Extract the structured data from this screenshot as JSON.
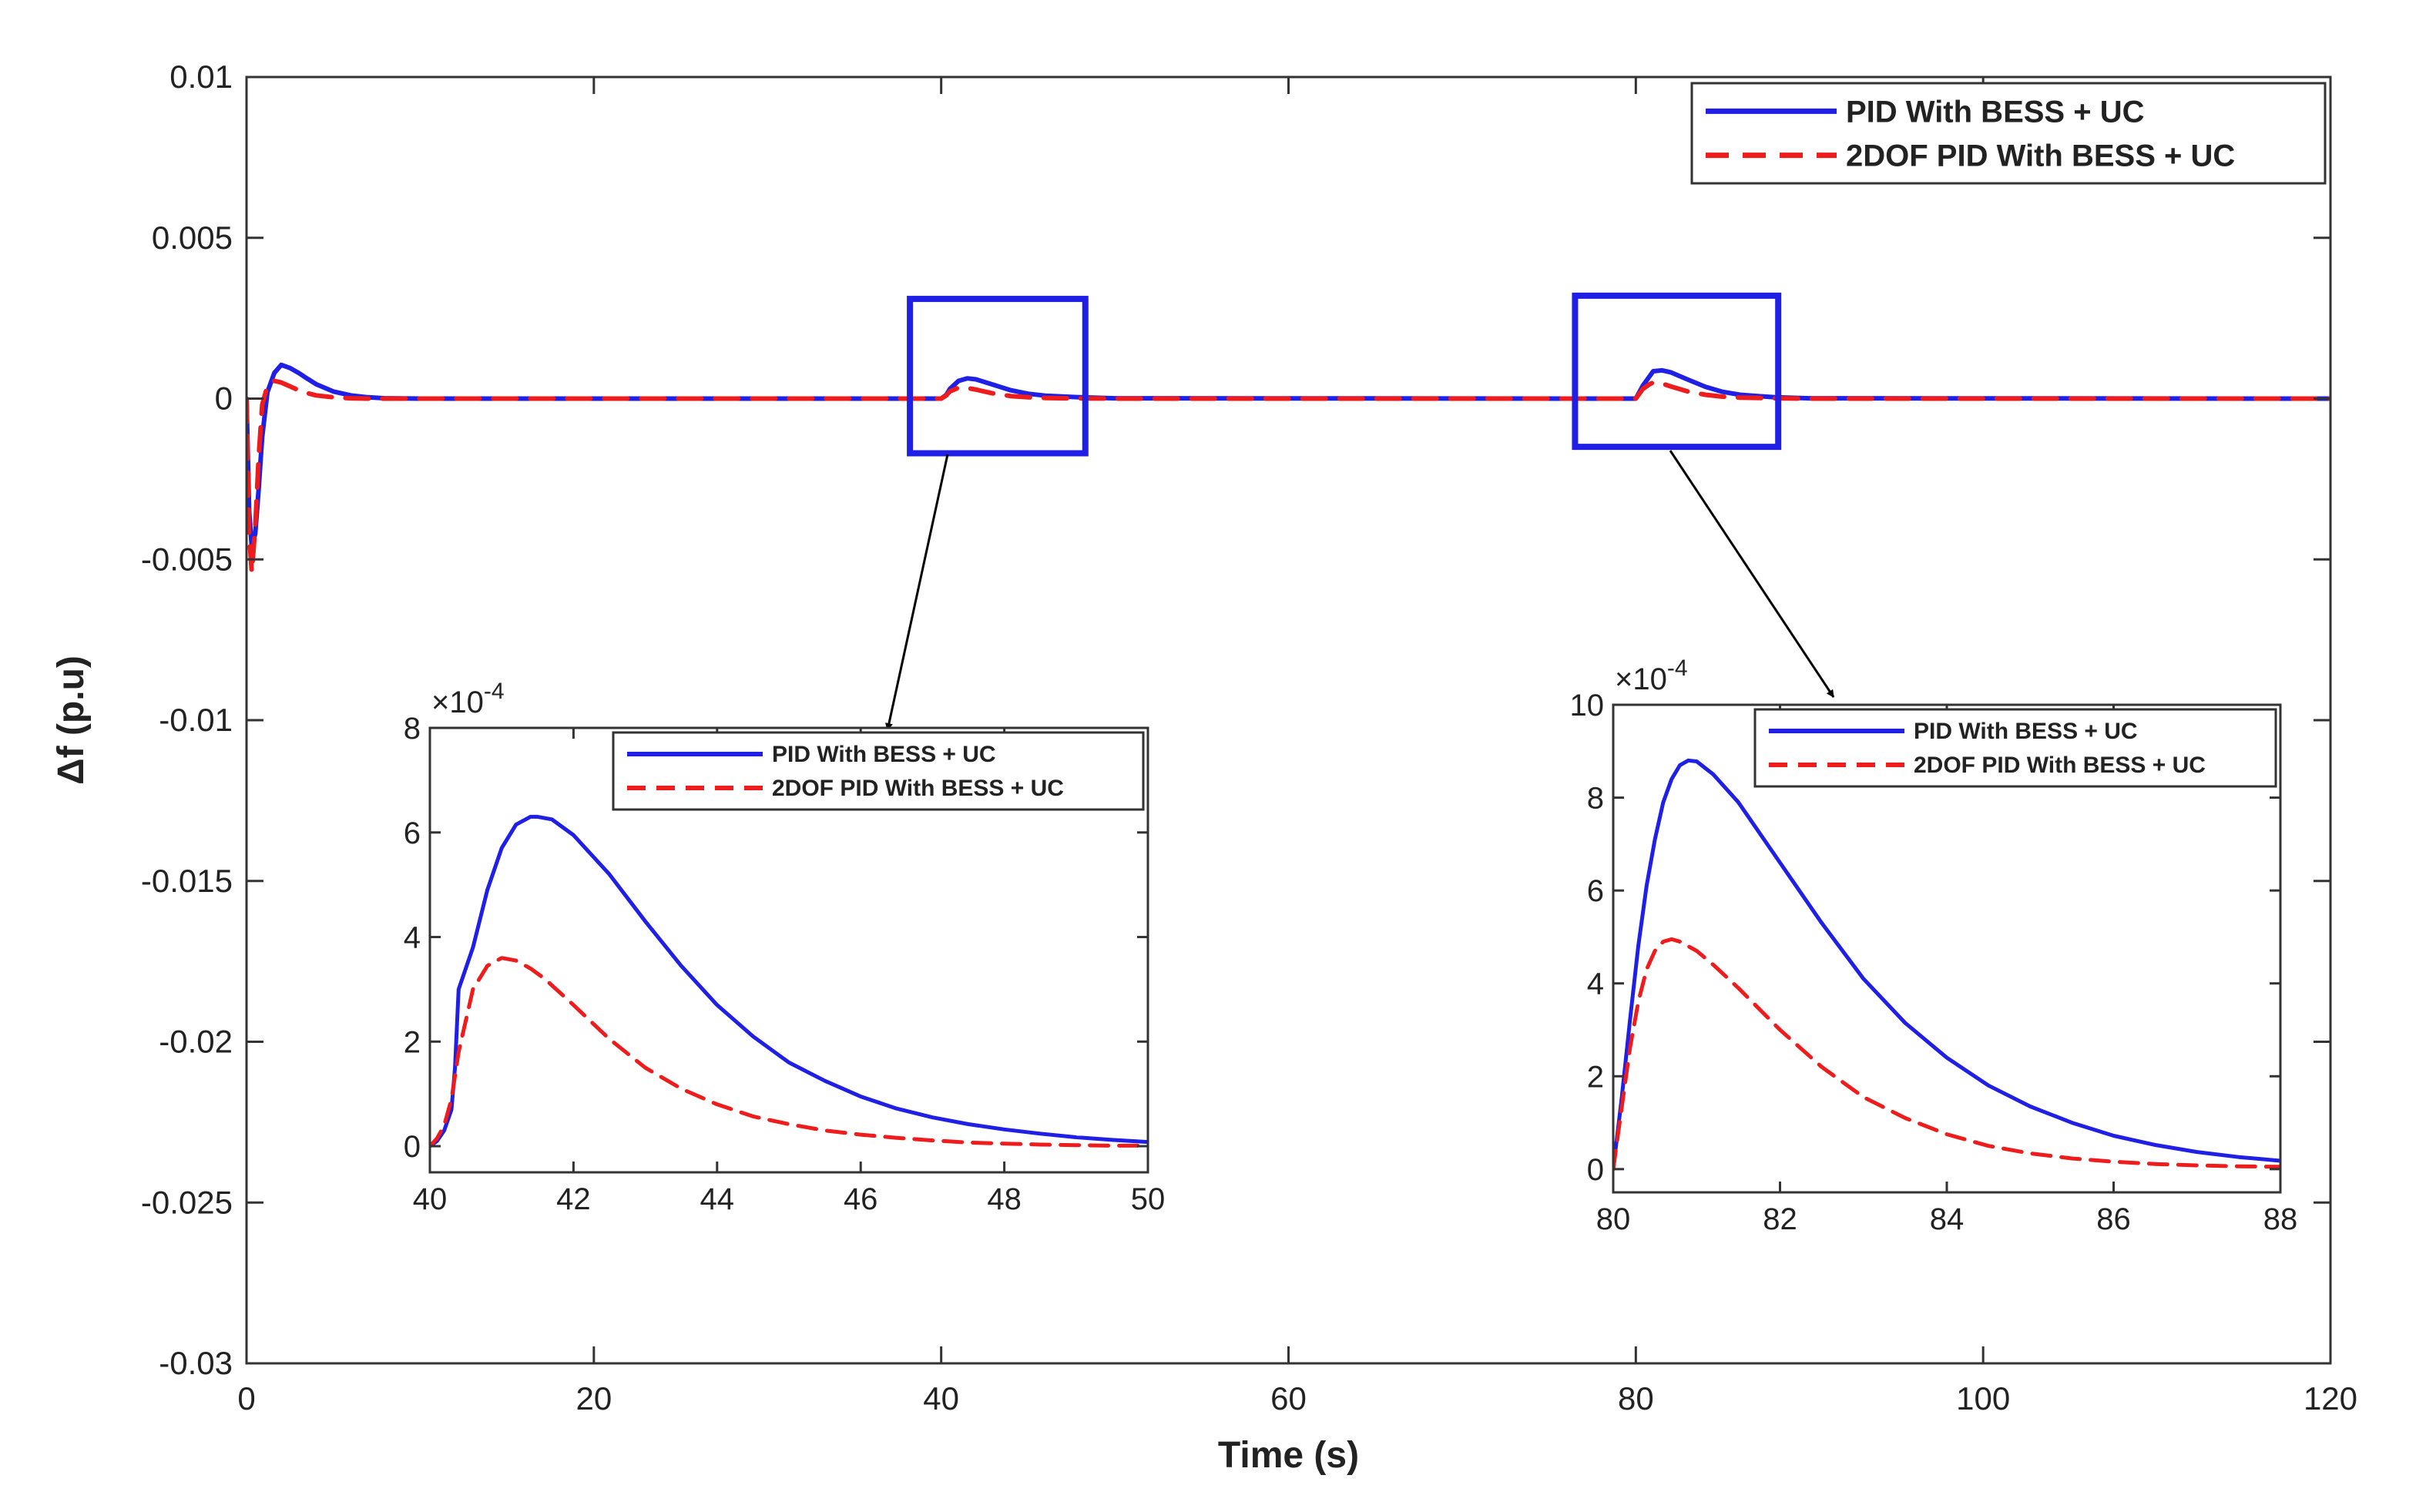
{
  "chart_data": [
    {
      "id": "main",
      "type": "line",
      "title": "",
      "xlabel": "Time (s)",
      "ylabel": "Δf (p.u)",
      "xlim": [
        0,
        120
      ],
      "ylim": [
        -0.03,
        0.01
      ],
      "xticks": [
        0,
        20,
        40,
        60,
        80,
        100,
        120
      ],
      "xtick_labels": [
        "0",
        "20",
        "40",
        "60",
        "80",
        "100",
        "120"
      ],
      "yticks": [
        0.01,
        0.005,
        0,
        -0.005,
        -0.01,
        -0.015,
        -0.02,
        -0.025,
        -0.03
      ],
      "ytick_labels": [
        "0.01",
        "0.005",
        "0",
        "-0.005",
        "-0.01",
        "-0.015",
        "-0.02",
        "-0.025",
        "-0.03"
      ],
      "grid": false,
      "legend_position": "top-right",
      "series": [
        {
          "name": "PID With BESS + UC",
          "color": "#1f1fe6",
          "style": "solid",
          "x": [
            0,
            0.15,
            0.3,
            0.5,
            0.7,
            0.9,
            1.2,
            1.6,
            2.0,
            2.5,
            3,
            3.5,
            4,
            5,
            6,
            7,
            8,
            10,
            12,
            40,
            40.3,
            40.5,
            41,
            41.5,
            42,
            43,
            44,
            45,
            46,
            48,
            50,
            80,
            80.4,
            80.8,
            81,
            81.5,
            82,
            83,
            84,
            85,
            86,
            88,
            90,
            120
          ],
          "y": [
            0,
            -0.0035,
            -0.0046,
            -0.0042,
            -0.0028,
            -0.0012,
            0.0002,
            0.0008,
            0.00105,
            0.00095,
            0.0008,
            0.00062,
            0.00045,
            0.00022,
            0.0001,
            4e-05,
            1e-05,
            0,
            0,
            0,
            0.00012,
            0.0003,
            0.00055,
            0.00063,
            0.0006,
            0.00043,
            0.00026,
            0.00015,
            9e-05,
            4e-05,
            1e-05,
            0,
            0.0004,
            0.0007,
            0.00085,
            0.00088,
            0.00082,
            0.00059,
            0.00037,
            0.00021,
            0.00012,
            4e-05,
            1e-05,
            0
          ]
        },
        {
          "name": "2DOF PID With BESS + UC",
          "color": "#ee1c1c",
          "style": "dashed",
          "x": [
            0,
            0.15,
            0.3,
            0.5,
            0.7,
            0.9,
            1.2,
            1.6,
            2.0,
            2.5,
            3,
            3.5,
            4,
            5,
            6,
            7,
            8,
            10,
            12,
            40,
            40.3,
            40.5,
            41,
            41.5,
            42,
            43,
            44,
            45,
            46,
            48,
            50,
            80,
            80.4,
            80.8,
            81,
            81.5,
            82,
            83,
            84,
            85,
            86,
            88,
            90,
            120
          ],
          "y": [
            0,
            -0.0042,
            -0.0054,
            -0.004,
            -0.0018,
            -0.0002,
            0.0004,
            0.00055,
            0.0005,
            0.00038,
            0.00026,
            0.00017,
            0.0001,
            4e-05,
            1e-05,
            0,
            0,
            0,
            0,
            0,
            0.0001,
            0.00022,
            0.00034,
            0.00033,
            0.00028,
            0.00016,
            8e-05,
            4e-05,
            2e-05,
            5e-06,
            0,
            0,
            0.0003,
            0.00045,
            0.0005,
            0.00047,
            0.00038,
            0.00022,
            0.00012,
            6e-05,
            3e-05,
            1e-05,
            0,
            0
          ]
        }
      ],
      "annotations": [
        "zoom box around t≈40–49 s",
        "zoom box around t≈77–88 s"
      ]
    },
    {
      "id": "inset1",
      "type": "line",
      "title": "",
      "xlabel": "",
      "ylabel": "",
      "multiplier": "×10",
      "exponent": "-4",
      "xlim": [
        40,
        50
      ],
      "ylim": [
        -0.5,
        8
      ],
      "xticks": [
        40,
        42,
        44,
        46,
        48,
        50
      ],
      "xtick_labels": [
        "40",
        "42",
        "44",
        "46",
        "48",
        "50"
      ],
      "yticks": [
        0,
        2,
        4,
        6,
        8
      ],
      "ytick_labels": [
        "0",
        "2",
        "4",
        "6",
        "8"
      ],
      "grid": false,
      "legend_position": "top-right",
      "series": [
        {
          "name": "PID With BESS + UC",
          "color": "#1f1fe6",
          "style": "solid",
          "x": [
            40,
            40.1,
            40.2,
            40.3,
            40.35,
            40.4,
            40.6,
            40.8,
            41.0,
            41.2,
            41.4,
            41.5,
            41.7,
            42.0,
            42.5,
            43.0,
            43.5,
            44.0,
            44.5,
            45.0,
            45.5,
            46.0,
            46.5,
            47.0,
            47.5,
            48.0,
            48.5,
            49.0,
            49.5,
            50.0
          ],
          "y": [
            0,
            0.1,
            0.3,
            0.7,
            1.5,
            3.0,
            3.8,
            4.9,
            5.7,
            6.15,
            6.3,
            6.3,
            6.25,
            5.95,
            5.2,
            4.3,
            3.45,
            2.7,
            2.1,
            1.6,
            1.25,
            0.95,
            0.72,
            0.55,
            0.42,
            0.32,
            0.24,
            0.17,
            0.12,
            0.08
          ]
        },
        {
          "name": "2DOF PID With BESS + UC",
          "color": "#ee1c1c",
          "style": "dashed",
          "x": [
            40,
            40.1,
            40.2,
            40.3,
            40.4,
            40.6,
            40.8,
            41.0,
            41.2,
            41.4,
            41.6,
            42.0,
            42.5,
            43.0,
            43.5,
            44.0,
            44.5,
            45.0,
            45.5,
            46.0,
            46.5,
            47.0,
            47.5,
            48.0,
            48.5,
            49.0,
            49.5,
            50.0
          ],
          "y": [
            0,
            0.15,
            0.4,
            0.9,
            1.8,
            3.0,
            3.45,
            3.6,
            3.55,
            3.4,
            3.2,
            2.7,
            2.05,
            1.5,
            1.1,
            0.8,
            0.57,
            0.42,
            0.3,
            0.22,
            0.16,
            0.11,
            0.07,
            0.05,
            0.03,
            0.02,
            0.01,
            0.01
          ]
        }
      ]
    },
    {
      "id": "inset2",
      "type": "line",
      "title": "",
      "xlabel": "",
      "ylabel": "",
      "multiplier": "×10",
      "exponent": "-4",
      "xlim": [
        80,
        88
      ],
      "ylim": [
        -0.5,
        10
      ],
      "xticks": [
        80,
        82,
        84,
        86,
        88
      ],
      "xtick_labels": [
        "80",
        "82",
        "84",
        "86",
        "88"
      ],
      "yticks": [
        0,
        2,
        4,
        6,
        8,
        10
      ],
      "ytick_labels": [
        "0",
        "2",
        "4",
        "6",
        "8",
        "10"
      ],
      "grid": false,
      "legend_position": "top-right",
      "series": [
        {
          "name": "PID With BESS + UC",
          "color": "#1f1fe6",
          "style": "solid",
          "x": [
            80,
            80.1,
            80.2,
            80.3,
            80.4,
            80.5,
            80.6,
            80.7,
            80.8,
            80.9,
            81.0,
            81.2,
            81.5,
            82.0,
            82.5,
            83.0,
            83.5,
            84.0,
            84.5,
            85.0,
            85.5,
            86.0,
            86.5,
            87.0,
            87.5,
            88.0
          ],
          "y": [
            0,
            1.5,
            3.2,
            4.8,
            6.1,
            7.1,
            7.9,
            8.4,
            8.7,
            8.8,
            8.78,
            8.5,
            7.9,
            6.6,
            5.3,
            4.1,
            3.15,
            2.4,
            1.8,
            1.35,
            1.0,
            0.72,
            0.52,
            0.37,
            0.26,
            0.18
          ]
        },
        {
          "name": "2DOF PID With BESS + UC",
          "color": "#ee1c1c",
          "style": "dashed",
          "x": [
            80,
            80.1,
            80.2,
            80.3,
            80.4,
            80.5,
            80.6,
            80.7,
            80.8,
            81.0,
            81.2,
            81.5,
            82.0,
            82.5,
            83.0,
            83.5,
            84.0,
            84.5,
            85.0,
            85.5,
            86.0,
            86.5,
            87.0,
            87.5,
            88.0
          ],
          "y": [
            0,
            1.3,
            2.6,
            3.6,
            4.3,
            4.7,
            4.9,
            4.95,
            4.9,
            4.7,
            4.4,
            3.9,
            3.0,
            2.2,
            1.55,
            1.1,
            0.75,
            0.5,
            0.34,
            0.23,
            0.16,
            0.11,
            0.08,
            0.06,
            0.05
          ]
        }
      ]
    }
  ]
}
